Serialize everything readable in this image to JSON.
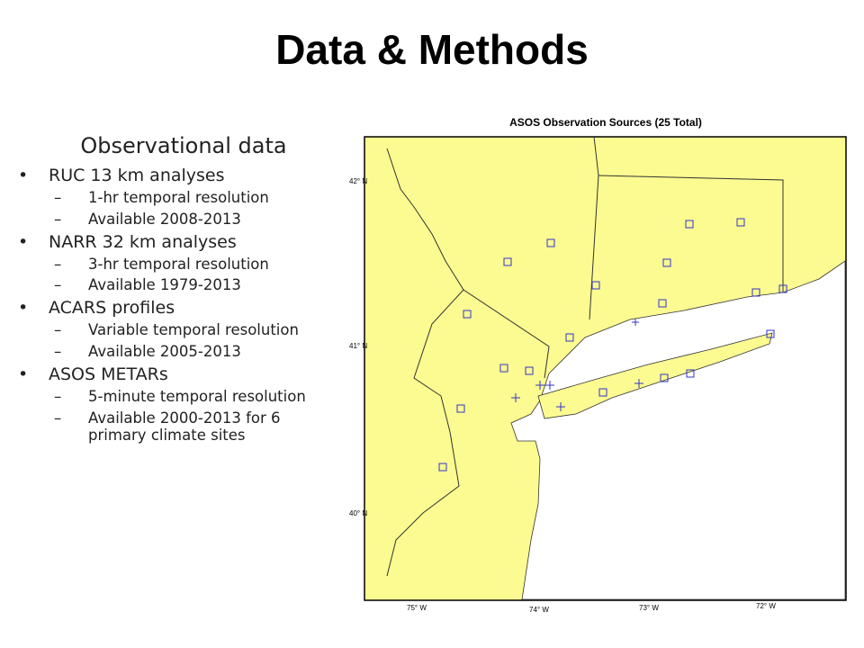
{
  "title": "Data & Methods",
  "panel": {
    "heading": "Observational data",
    "items": [
      {
        "text": "RUC 13 km analyses",
        "subitems": [
          "1-hr temporal resolution",
          "Available 2008-2013"
        ]
      },
      {
        "text": "NARR 32 km analyses",
        "subitems": [
          "3-hr temporal resolution",
          "Available 1979-2013"
        ]
      },
      {
        "text": "ACARS profiles",
        "subitems": [
          "Variable temporal resolution",
          "Available 2005-2013"
        ]
      },
      {
        "text": "ASOS METARs",
        "subitems": [
          "5-minute temporal resolution",
          "Available 2000-2013 for 6 primary climate sites"
        ]
      }
    ]
  },
  "map": {
    "title": "ASOS Observation Sources (25 Total)",
    "lat_labels": [
      "42° N",
      "41° N",
      "40° N"
    ],
    "lon_labels": [
      "75° W",
      "74° W",
      "73° W",
      "72° W"
    ]
  }
}
